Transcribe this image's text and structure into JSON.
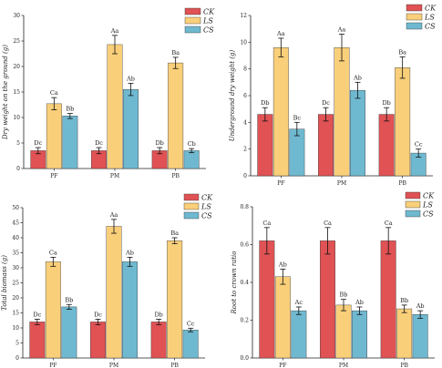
{
  "colors": {
    "CK": "#e05254",
    "LS": "#f9cf7a",
    "CS": "#6fb9d0"
  },
  "chart_data": [
    {
      "type": "bar",
      "title": "",
      "xlabel": "",
      "ylabel": "Dry weight on the ground (g)",
      "ylim": [
        0,
        30
      ],
      "yticks": [
        0,
        5,
        10,
        15,
        20,
        25,
        30
      ],
      "categories": [
        "PF",
        "PM",
        "PB"
      ],
      "series": [
        {
          "name": "CK",
          "values": [
            3.5,
            3.5,
            3.5
          ],
          "errors": [
            0.6,
            0.6,
            0.6
          ],
          "labels": [
            "Dc",
            "Dc",
            "Db"
          ]
        },
        {
          "name": "LS",
          "values": [
            12.7,
            24.3,
            20.7
          ],
          "errors": [
            1.2,
            1.8,
            1.1
          ],
          "labels": [
            "Ca",
            "Aa",
            "Ba"
          ]
        },
        {
          "name": "CS",
          "values": [
            10.3,
            15.5,
            3.5
          ],
          "errors": [
            0.5,
            1.2,
            0.4
          ],
          "labels": [
            "Bb",
            "Ab",
            "Cb"
          ]
        }
      ],
      "legend": "top-right"
    },
    {
      "type": "bar",
      "title": "",
      "xlabel": "",
      "ylabel": "Underground dry weight (g)",
      "ylim": [
        0,
        12
      ],
      "yticks": [
        0,
        2,
        4,
        6,
        8,
        10,
        12
      ],
      "categories": [
        "PF",
        "PM",
        "PB"
      ],
      "series": [
        {
          "name": "CK",
          "values": [
            4.6,
            4.6,
            4.6
          ],
          "errors": [
            0.5,
            0.5,
            0.5
          ],
          "labels": [
            "Db",
            "Dc",
            "Db"
          ]
        },
        {
          "name": "LS",
          "values": [
            9.6,
            9.6,
            8.1
          ],
          "errors": [
            0.7,
            1.0,
            0.8
          ],
          "labels": [
            "Aa",
            "Aa",
            "Ba"
          ]
        },
        {
          "name": "CS",
          "values": [
            3.5,
            6.4,
            1.7
          ],
          "errors": [
            0.5,
            0.6,
            0.3
          ],
          "labels": [
            "Bc",
            "Ab",
            "Cc"
          ]
        }
      ],
      "legend": "top-right"
    },
    {
      "type": "bar",
      "title": "",
      "xlabel": "",
      "ylabel": "Total biomass (g)",
      "ylim": [
        0,
        50
      ],
      "yticks": [
        0,
        5,
        10,
        15,
        20,
        25,
        30,
        35,
        40,
        45,
        50
      ],
      "categories": [
        "PF",
        "PM",
        "PB"
      ],
      "series": [
        {
          "name": "CK",
          "values": [
            12.0,
            12.0,
            12.0
          ],
          "errors": [
            0.9,
            0.9,
            0.9
          ],
          "labels": [
            "Dc",
            "Dc",
            "Db"
          ]
        },
        {
          "name": "LS",
          "values": [
            32.0,
            43.8,
            39.0
          ],
          "errors": [
            1.5,
            2.3,
            1.0
          ],
          "labels": [
            "Ca",
            "Aa",
            "Ba"
          ]
        },
        {
          "name": "CS",
          "values": [
            17.0,
            32.0,
            9.3
          ],
          "errors": [
            0.8,
            1.5,
            0.6
          ],
          "labels": [
            "Bb",
            "Ab",
            "Cc"
          ]
        }
      ],
      "legend": "top-right"
    },
    {
      "type": "bar",
      "title": "",
      "xlabel": "",
      "ylabel": "Root to crown ratio",
      "ylim": [
        0,
        0.8
      ],
      "yticks": [
        0.0,
        0.2,
        0.4,
        0.6,
        0.8
      ],
      "categories": [
        "PF",
        "PM",
        "PB"
      ],
      "series": [
        {
          "name": "CK",
          "values": [
            0.62,
            0.62,
            0.62
          ],
          "errors": [
            0.07,
            0.07,
            0.07
          ],
          "labels": [
            "Ca",
            "Ca",
            "Ca"
          ]
        },
        {
          "name": "LS",
          "values": [
            0.43,
            0.28,
            0.26
          ],
          "errors": [
            0.04,
            0.03,
            0.02
          ],
          "labels": [
            "Ab",
            "Bb",
            "Bb"
          ]
        },
        {
          "name": "CS",
          "values": [
            0.25,
            0.25,
            0.23
          ],
          "errors": [
            0.02,
            0.02,
            0.02
          ],
          "labels": [
            "Ac",
            "Ab",
            "Ab"
          ]
        }
      ],
      "legend": "top-right"
    }
  ]
}
